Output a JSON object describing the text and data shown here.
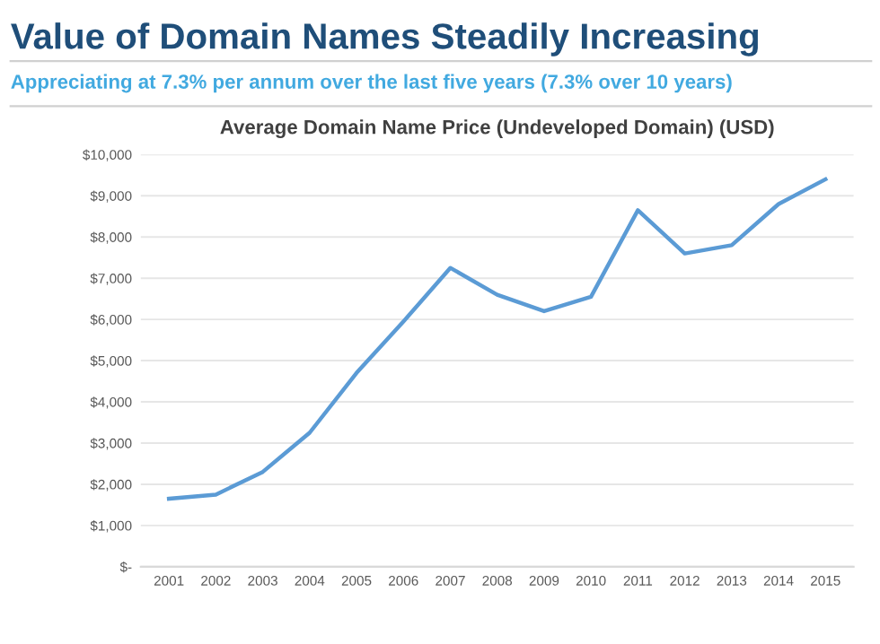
{
  "chart_data": {
    "type": "line",
    "title": "Value of Domain Names Steadily Increasing",
    "subtitle": "Appreciating at 7.3% per annum over the last five years (7.3% over 10 years)",
    "annotations": [
      "Average Domain Name Price (Undeveloped Domain) (USD)"
    ],
    "categories": [
      "2001",
      "2002",
      "2003",
      "2004",
      "2005",
      "2006",
      "2007",
      "2008",
      "2009",
      "2010",
      "2011",
      "2012",
      "2013",
      "2014",
      "2015"
    ],
    "series": [
      {
        "color": "#5b9bd5",
        "values": [
          1650,
          1750,
          2300,
          3250,
          4700,
          5950,
          7250,
          6600,
          6200,
          6550,
          8650,
          7600,
          7800,
          8800,
          9400
        ]
      }
    ],
    "ylim": [
      0,
      10000
    ],
    "yticks": [
      {
        "value": 0,
        "label": "$-"
      },
      {
        "value": 1000,
        "label": "$1,000"
      },
      {
        "value": 2000,
        "label": "$2,000"
      },
      {
        "value": 3000,
        "label": "$3,000"
      },
      {
        "value": 4000,
        "label": "$4,000"
      },
      {
        "value": 5000,
        "label": "$5,000"
      },
      {
        "value": 6000,
        "label": "$6,000"
      },
      {
        "value": 7000,
        "label": "$7,000"
      },
      {
        "value": 8000,
        "label": "$8,000"
      },
      {
        "value": 9000,
        "label": "$9,000"
      },
      {
        "value": 10000,
        "label": "$10,000"
      }
    ],
    "grid": "y",
    "marker": "none",
    "line_style": "solid"
  }
}
